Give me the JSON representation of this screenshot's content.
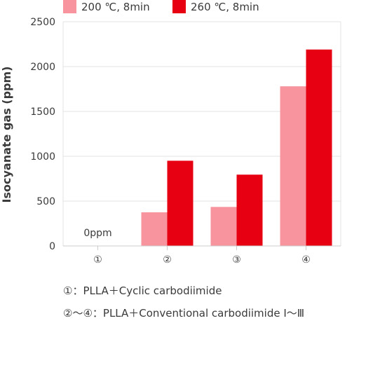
{
  "chart_data": {
    "type": "bar",
    "ylabel": "Isocyanate gas (ppm)",
    "xlabel": "",
    "ylim": [
      0,
      2500
    ],
    "yticks": [
      0,
      500,
      1000,
      1500,
      2000,
      2500
    ],
    "categories": [
      "①",
      "②",
      "③",
      "④"
    ],
    "grid": true,
    "legend_position": "top-left",
    "series": [
      {
        "name": "200 ℃, 8min",
        "color": "#f7949e",
        "values": [
          0,
          375,
          435,
          1780
        ]
      },
      {
        "name": "260 ℃, 8min",
        "color": "#e60012",
        "values": [
          0,
          950,
          795,
          2190
        ]
      }
    ],
    "annotations": [
      {
        "text": "0ppm",
        "category": "①"
      }
    ]
  },
  "notes": [
    "①：PLLA＋Cyclic carbodiimide",
    "②〜④：PLLA＋Conventional carbodiimide Ⅰ〜Ⅲ"
  ]
}
